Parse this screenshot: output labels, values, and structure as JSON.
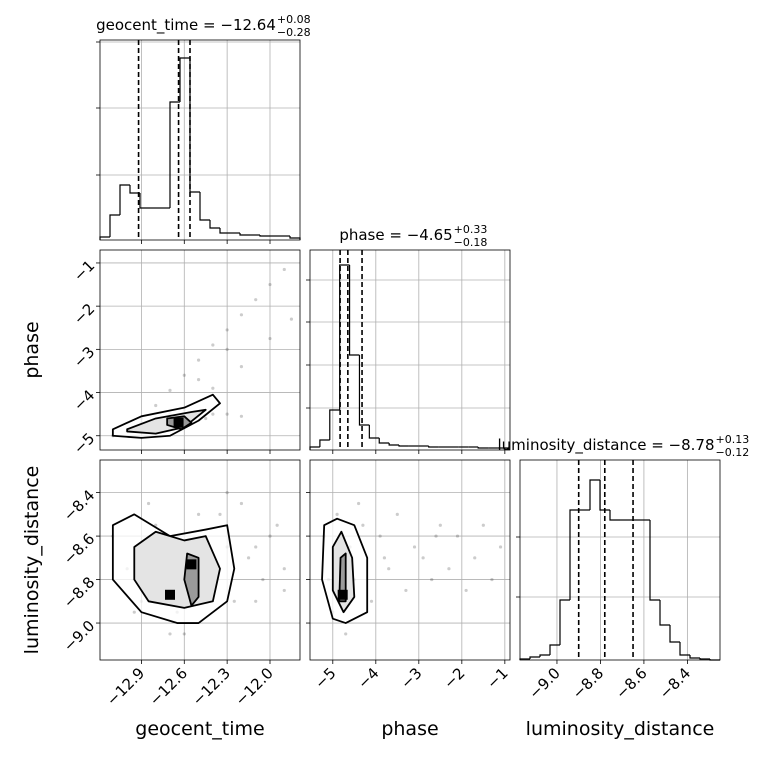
{
  "chart_data": [
    {
      "type": "histogram",
      "title": "geocent_time = −12.64",
      "title_sup": "+0.08",
      "title_sub": "−0.28",
      "bins": [
        -13.19,
        -13.12,
        -13.05,
        -12.98,
        -12.91,
        -12.84,
        -12.77,
        -12.7,
        -12.63,
        -12.56,
        -12.49,
        -12.42,
        -12.35,
        -12.28,
        -12.21,
        -12.14,
        -12.07,
        -12.0,
        -11.93,
        -11.86,
        -11.79
      ],
      "counts": [
        3,
        25,
        55,
        47,
        32,
        32,
        32,
        138,
        182,
        48,
        20,
        12,
        7,
        7,
        5,
        5,
        4,
        4,
        4,
        2
      ],
      "quantiles": [
        -12.92,
        -12.64,
        -12.56
      ],
      "xlim": [
        -13.19,
        -11.79
      ],
      "ylim": [
        0,
        200
      ],
      "xticks": [
        -12.9,
        -12.6,
        -12.3,
        -12.0
      ],
      "yticks": [
        65,
        132,
        198
      ],
      "grid": true
    },
    {
      "type": "scatter",
      "ylabel": "phase",
      "x": [
        -13.0,
        -12.9,
        -12.8,
        -12.7,
        -12.6,
        -12.5,
        -12.4,
        -12.3,
        -12.2,
        -12.1,
        -12.0,
        -11.9,
        -12.8,
        -12.6,
        -12.4,
        -12.2,
        -12.0,
        -11.85,
        -12.9,
        -12.7,
        -12.5,
        -12.3,
        -12.4,
        -12.3,
        -12.2,
        -13.1,
        -12.8,
        -12.65,
        -12.55,
        -12.45
      ],
      "y": [
        -4.9,
        -4.6,
        -4.3,
        -3.95,
        -3.6,
        -3.25,
        -2.9,
        -2.55,
        -2.2,
        -1.85,
        -1.5,
        -1.15,
        -4.8,
        -4.4,
        -3.9,
        -3.4,
        -2.75,
        -2.3,
        -4.7,
        -4.5,
        -3.7,
        -3.0,
        -4.5,
        -4.5,
        -4.55,
        -5.0,
        -4.75,
        -4.65,
        -4.7,
        -4.6
      ],
      "contours": [
        {
          "x": [
            -13.1,
            -12.9,
            -12.6,
            -12.4,
            -12.35,
            -12.5,
            -12.7,
            -12.9,
            -13.1
          ],
          "y": [
            -4.85,
            -4.55,
            -4.35,
            -4.05,
            -4.25,
            -4.65,
            -5.0,
            -5.05,
            -5.0
          ]
        },
        {
          "x": [
            -13.0,
            -12.8,
            -12.55,
            -12.45,
            -12.6,
            -12.8,
            -13.0
          ],
          "y": [
            -4.85,
            -4.6,
            -4.45,
            -4.4,
            -4.8,
            -4.95,
            -4.9
          ]
        },
        {
          "x": [
            -12.72,
            -12.6,
            -12.55,
            -12.62,
            -12.72
          ],
          "y": [
            -4.6,
            -4.55,
            -4.7,
            -4.85,
            -4.75
          ]
        }
      ],
      "peaks": {
        "x": [
          -12.64
        ],
        "y": [
          -4.7
        ]
      },
      "xlim": [
        -13.19,
        -11.79
      ],
      "ylim": [
        -5.33,
        -0.7
      ],
      "xticks": [
        -12.9,
        -12.6,
        -12.3,
        -12.0
      ],
      "yticks": [
        {
          "value": -1,
          "label": "−1"
        },
        {
          "value": -2,
          "label": "−2"
        },
        {
          "value": -3,
          "label": "−3"
        },
        {
          "value": -4,
          "label": "−4"
        },
        {
          "value": -5,
          "label": "−5"
        }
      ],
      "grid": true
    },
    {
      "type": "histogram",
      "title": "phase = −4.65",
      "title_sup": "+0.33",
      "title_sub": "−0.18",
      "bins": [
        -5.53,
        -5.3,
        -5.07,
        -4.84,
        -4.61,
        -4.38,
        -4.15,
        -3.92,
        -3.69,
        -3.46,
        -3.23,
        -3.0,
        -2.77,
        -2.54,
        -2.31,
        -2.08,
        -1.85,
        -1.62,
        -1.39,
        -1.16,
        -0.93
      ],
      "counts": [
        3,
        10,
        40,
        185,
        95,
        25,
        12,
        7,
        5,
        4,
        4,
        4,
        3,
        3,
        3,
        3,
        3,
        2,
        2,
        2
      ],
      "quantiles": [
        -4.83,
        -4.65,
        -4.32
      ],
      "xlim": [
        -5.53,
        -0.88
      ],
      "ylim": [
        0,
        200
      ],
      "xticks": [
        -5,
        -4,
        -3,
        -2,
        -1
      ],
      "yticks": [
        42,
        85,
        128,
        170
      ],
      "grid": true
    },
    {
      "type": "scatter",
      "xlabel": "geocent_time",
      "ylabel": "luminosity_distance",
      "x": [
        -13.1,
        -13.0,
        -12.9,
        -12.8,
        -12.7,
        -12.6,
        -12.5,
        -12.4,
        -12.3,
        -12.2,
        -12.1,
        -12.0,
        -11.9,
        -12.95,
        -12.75,
        -12.55,
        -12.35,
        -12.15,
        -11.95,
        -12.85,
        -12.65,
        -12.45,
        -12.25,
        -12.05,
        -12.6,
        -12.5,
        -12.7,
        -12.3,
        -12.1,
        -11.9
      ],
      "y": [
        -8.6,
        -8.75,
        -8.9,
        -8.55,
        -9.05,
        -8.7,
        -8.5,
        -8.8,
        -8.65,
        -8.45,
        -8.9,
        -8.6,
        -8.75,
        -8.95,
        -8.7,
        -8.85,
        -8.5,
        -8.7,
        -8.55,
        -8.45,
        -8.95,
        -8.65,
        -8.9,
        -8.8,
        -9.05,
        -8.8,
        -8.75,
        -8.4,
        -8.65,
        -8.85
      ],
      "contours": [
        {
          "x": [
            -13.1,
            -12.95,
            -12.7,
            -12.45,
            -12.3,
            -12.25,
            -12.3,
            -12.5,
            -12.65,
            -12.9,
            -13.1
          ],
          "y": [
            -8.55,
            -8.5,
            -8.6,
            -8.57,
            -8.55,
            -8.75,
            -8.9,
            -9.0,
            -9.0,
            -8.95,
            -8.8
          ]
        },
        {
          "x": [
            -12.95,
            -12.8,
            -12.6,
            -12.45,
            -12.35,
            -12.4,
            -12.6,
            -12.85,
            -12.95
          ],
          "y": [
            -8.65,
            -8.58,
            -8.62,
            -8.6,
            -8.75,
            -8.9,
            -8.93,
            -8.9,
            -8.8
          ]
        },
        {
          "x": [
            -12.58,
            -12.5,
            -12.5,
            -12.55,
            -12.6
          ],
          "y": [
            -8.68,
            -8.7,
            -8.88,
            -8.92,
            -8.8
          ]
        }
      ],
      "peaks": {
        "x": [
          -12.55,
          -12.7
        ],
        "y": [
          -8.73,
          -8.87
        ]
      },
      "xlim": [
        -13.19,
        -11.79
      ],
      "ylim": [
        -9.17,
        -8.25
      ],
      "xticks": [
        {
          "value": -12.9,
          "label": "−12.9"
        },
        {
          "value": -12.6,
          "label": "−12.6"
        },
        {
          "value": -12.3,
          "label": "−12.3"
        },
        {
          "value": -12.0,
          "label": "−12.0"
        }
      ],
      "yticks": [
        {
          "value": -8.4,
          "label": "−8.4"
        },
        {
          "value": -8.6,
          "label": "−8.6"
        },
        {
          "value": -8.8,
          "label": "−8.8"
        },
        {
          "value": -9.0,
          "label": "−9.0"
        }
      ],
      "grid": true
    },
    {
      "type": "scatter",
      "xlabel": "phase",
      "x": [
        -5.2,
        -5.1,
        -5.0,
        -4.9,
        -4.8,
        -4.7,
        -4.6,
        -4.5,
        -4.3,
        -4.1,
        -3.9,
        -3.7,
        -3.5,
        -3.3,
        -3.1,
        -2.9,
        -2.7,
        -2.5,
        -2.3,
        -2.1,
        -1.9,
        -1.7,
        -1.5,
        -1.3,
        -1.1,
        -4.95,
        -4.75,
        -4.4,
        -3.8,
        -2.6
      ],
      "y": [
        -8.6,
        -8.8,
        -8.95,
        -8.5,
        -8.75,
        -9.05,
        -8.65,
        -8.8,
        -8.55,
        -8.9,
        -8.6,
        -8.75,
        -8.5,
        -8.85,
        -8.65,
        -8.7,
        -8.8,
        -8.55,
        -8.75,
        -8.6,
        -8.85,
        -8.7,
        -8.55,
        -8.8,
        -8.65,
        -8.85,
        -8.9,
        -8.45,
        -8.7,
        -8.6
      ],
      "contours": [
        {
          "x": [
            -5.2,
            -4.9,
            -4.5,
            -4.2,
            -4.2,
            -4.7,
            -5.0,
            -5.25
          ],
          "y": [
            -8.55,
            -8.52,
            -8.55,
            -8.7,
            -8.95,
            -9.0,
            -8.98,
            -8.8
          ]
        },
        {
          "x": [
            -5.0,
            -4.8,
            -4.55,
            -4.5,
            -4.75,
            -5.0
          ],
          "y": [
            -8.65,
            -8.58,
            -8.7,
            -8.88,
            -8.95,
            -8.85
          ]
        },
        {
          "x": [
            -4.82,
            -4.7,
            -4.7,
            -4.85
          ],
          "y": [
            -8.7,
            -8.68,
            -8.9,
            -8.9
          ]
        }
      ],
      "peaks": {
        "x": [
          -4.77
        ],
        "y": [
          -8.87
        ]
      },
      "xlim": [
        -5.53,
        -0.88
      ],
      "ylim": [
        -9.17,
        -8.25
      ],
      "xticks": [
        {
          "value": -5,
          "label": "−5"
        },
        {
          "value": -4,
          "label": "−4"
        },
        {
          "value": -3,
          "label": "−3"
        },
        {
          "value": -2,
          "label": "−2"
        },
        {
          "value": -1,
          "label": "−1"
        }
      ],
      "yticks": [
        -8.4,
        -8.6,
        -8.8,
        -9.0
      ],
      "grid": true
    },
    {
      "type": "histogram",
      "title": "luminosity_distance = −8.78",
      "title_sup": "+0.13",
      "title_sub": "−0.12",
      "xlabel": "luminosity_distance",
      "bins": [
        -9.17,
        -9.124,
        -9.078,
        -9.032,
        -8.986,
        -8.94,
        -8.894,
        -8.848,
        -8.802,
        -8.756,
        -8.71,
        -8.664,
        -8.618,
        -8.572,
        -8.526,
        -8.48,
        -8.434,
        -8.388,
        -8.342,
        -8.296,
        -8.25
      ],
      "counts": [
        1,
        3,
        5,
        15,
        60,
        150,
        150,
        180,
        150,
        140,
        140,
        140,
        140,
        60,
        35,
        18,
        5,
        2,
        1,
        0
      ],
      "quantiles": [
        -8.9,
        -8.78,
        -8.65
      ],
      "xlim": [
        -9.17,
        -8.25
      ],
      "ylim": [
        0,
        200
      ],
      "xticks": [
        {
          "value": -9.0,
          "label": "−9.0"
        },
        {
          "value": -8.8,
          "label": "−8.8"
        },
        {
          "value": -8.6,
          "label": "−8.6"
        },
        {
          "value": -8.4,
          "label": "−8.4"
        }
      ],
      "yticks": [
        63,
        123
      ],
      "grid": true
    }
  ]
}
